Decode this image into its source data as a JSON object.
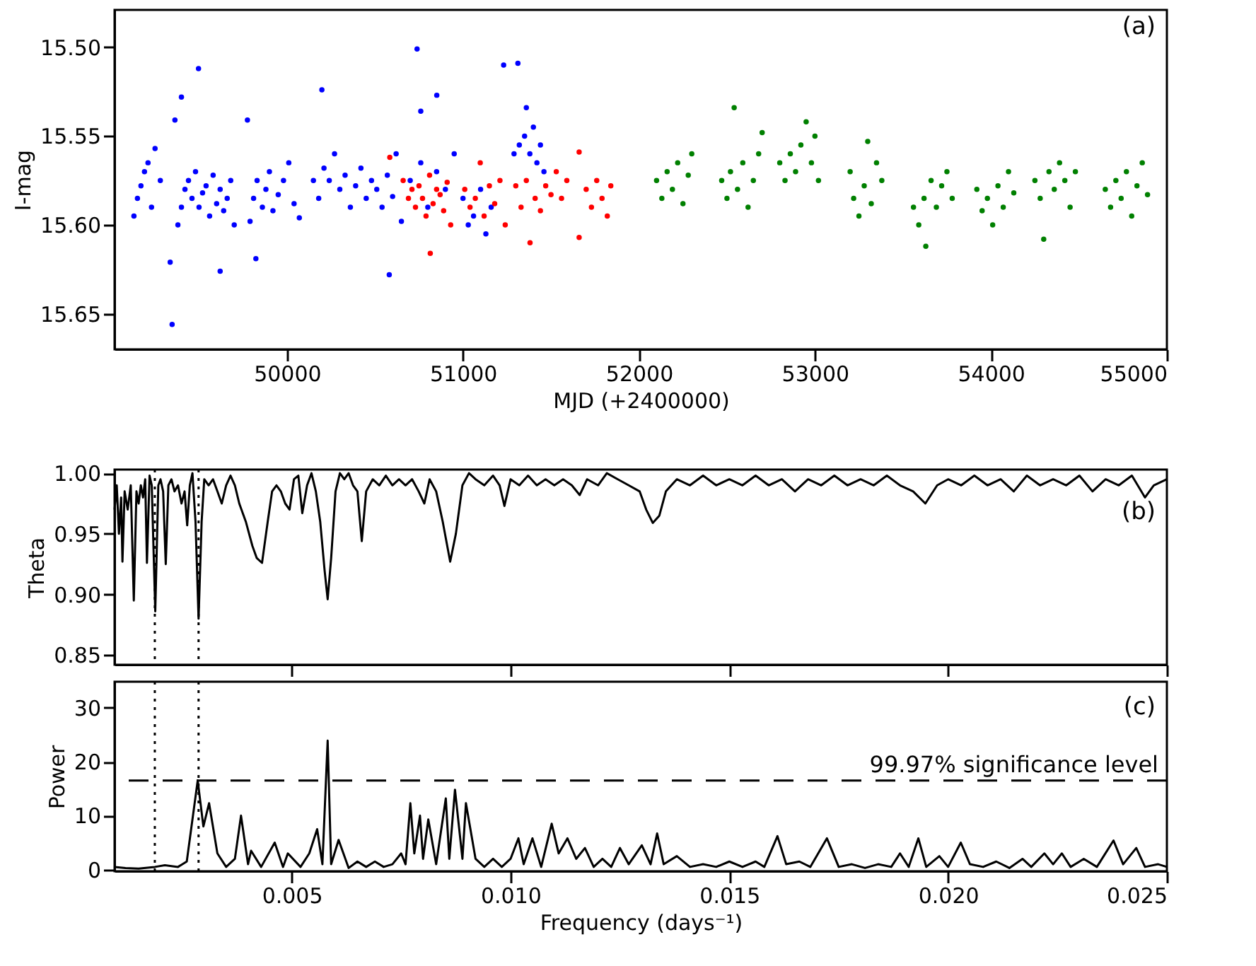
{
  "chart_data": [
    {
      "type": "scatter",
      "xlabel": "MJD (+2400000)",
      "ylabel": "I-mag",
      "annotations": [
        "(a)"
      ],
      "marker": "circle",
      "xlim": [
        49020,
        55000
      ],
      "xticks": [
        50000,
        51000,
        52000,
        53000,
        54000,
        55000
      ],
      "ylim": [
        15.67,
        15.479
      ],
      "yticks": [
        {
          "value": 15.5,
          "label": "15.50"
        },
        15.55,
        {
          "value": 15.6,
          "label": "15.60"
        },
        15.65
      ],
      "series": [
        {
          "color": "#0000ff",
          "x": [
            49130,
            49150,
            49170,
            49190,
            49210,
            49230,
            49250,
            49280,
            49380,
            49400,
            49420,
            49440,
            49460,
            49480,
            49500,
            49520,
            49540,
            49560,
            49580,
            49600,
            49620,
            49640,
            49660,
            49680,
            49700,
            49790,
            49810,
            49830,
            49860,
            49880,
            49900,
            49920,
            49950,
            49980,
            50010,
            50040,
            50070,
            50150,
            50180,
            50210,
            50240,
            50270,
            50300,
            50330,
            50360,
            50390,
            50420,
            50450,
            50480,
            50510,
            50540,
            50570,
            50600,
            50620,
            50650,
            50700,
            50760,
            50800,
            50850,
            50900,
            50950,
            51000,
            51030,
            51060,
            51100,
            51130,
            51160,
            51290,
            51320,
            51350,
            51380,
            51400,
            51420,
            51440,
            51460,
            49497,
            49400,
            49363,
            49347,
            49620,
            50198,
            49775,
            50739,
            50851,
            50760,
            50581,
            51231,
            51312,
            51360,
            49336,
            49823
          ],
          "values": [
            15.595,
            15.585,
            15.578,
            15.57,
            15.565,
            15.59,
            15.557,
            15.575,
            15.6,
            15.59,
            15.58,
            15.575,
            15.585,
            15.57,
            15.59,
            15.582,
            15.578,
            15.595,
            15.572,
            15.588,
            15.58,
            15.592,
            15.585,
            15.575,
            15.6,
            15.598,
            15.585,
            15.575,
            15.59,
            15.58,
            15.57,
            15.592,
            15.583,
            15.575,
            15.565,
            15.588,
            15.596,
            15.575,
            15.585,
            15.568,
            15.575,
            15.56,
            15.58,
            15.572,
            15.59,
            15.578,
            15.568,
            15.585,
            15.575,
            15.58,
            15.59,
            15.572,
            15.584,
            15.56,
            15.598,
            15.575,
            15.565,
            15.59,
            15.57,
            15.58,
            15.56,
            15.585,
            15.6,
            15.595,
            15.58,
            15.605,
            15.59,
            15.56,
            15.555,
            15.55,
            15.56,
            15.545,
            15.565,
            15.555,
            15.57,
            15.512,
            15.528,
            15.541,
            15.656,
            15.626,
            15.524,
            15.541,
            15.501,
            15.527,
            15.536,
            15.628,
            15.51,
            15.509,
            15.534,
            15.621,
            15.619
          ]
        },
        {
          "color": "#ff0000",
          "x": [
            50660,
            50690,
            50710,
            50730,
            50750,
            50770,
            50790,
            50810,
            50830,
            50850,
            50870,
            50890,
            50910,
            50930,
            50814,
            50584,
            51010,
            51040,
            51070,
            51098,
            51120,
            51150,
            51180,
            51210,
            51240,
            51300,
            51330,
            51360,
            51381,
            51410,
            51440,
            51470,
            51500,
            51530,
            51560,
            51590,
            51660,
            51660,
            51700,
            51730,
            51760,
            51790,
            51820,
            51840
          ],
          "values": [
            15.575,
            15.585,
            15.58,
            15.59,
            15.578,
            15.585,
            15.595,
            15.572,
            15.588,
            15.58,
            15.583,
            15.592,
            15.576,
            15.6,
            15.616,
            15.562,
            15.58,
            15.59,
            15.585,
            15.565,
            15.595,
            15.578,
            15.588,
            15.575,
            15.6,
            15.578,
            15.59,
            15.575,
            15.61,
            15.585,
            15.592,
            15.578,
            15.583,
            15.57,
            15.585,
            15.575,
            15.559,
            15.607,
            15.58,
            15.59,
            15.575,
            15.585,
            15.595,
            15.578
          ]
        },
        {
          "color": "#008000",
          "x": [
            52100,
            52130,
            52160,
            52190,
            52220,
            52250,
            52280,
            52300,
            52470,
            52500,
            52520,
            52541,
            52560,
            52590,
            52620,
            52650,
            52680,
            52700,
            52800,
            52830,
            52860,
            52890,
            52920,
            52950,
            52980,
            53000,
            53020,
            53200,
            53220,
            53250,
            53280,
            53300,
            53320,
            53350,
            53380,
            53560,
            53590,
            53620,
            53630,
            53660,
            53690,
            53720,
            53750,
            53780,
            53920,
            53950,
            53980,
            54010,
            54040,
            54070,
            54100,
            54130,
            54250,
            54280,
            54300,
            54330,
            54360,
            54390,
            54420,
            54450,
            54480,
            54650,
            54680,
            54710,
            54740,
            54770,
            54800,
            54830,
            54860,
            54890
          ],
          "values": [
            15.575,
            15.585,
            15.57,
            15.58,
            15.565,
            15.588,
            15.572,
            15.56,
            15.575,
            15.585,
            15.57,
            15.534,
            15.58,
            15.565,
            15.59,
            15.575,
            15.56,
            15.548,
            15.565,
            15.575,
            15.56,
            15.57,
            15.555,
            15.542,
            15.565,
            15.55,
            15.575,
            15.57,
            15.585,
            15.595,
            15.578,
            15.553,
            15.588,
            15.565,
            15.575,
            15.59,
            15.6,
            15.585,
            15.612,
            15.575,
            15.59,
            15.578,
            15.57,
            15.585,
            15.58,
            15.592,
            15.585,
            15.6,
            15.578,
            15.59,
            15.57,
            15.582,
            15.575,
            15.585,
            15.608,
            15.57,
            15.58,
            15.565,
            15.575,
            15.59,
            15.57,
            15.58,
            15.59,
            15.575,
            15.585,
            15.57,
            15.595,
            15.578,
            15.565,
            15.583
          ]
        }
      ]
    },
    {
      "type": "line",
      "ylabel": "Theta",
      "annotations": [
        "(b)"
      ],
      "tick_labels": "y",
      "xlim": [
        0.00095,
        0.025
      ],
      "xticks": [
        0.005,
        0.01,
        0.015,
        0.02,
        0.025
      ],
      "ylim": [
        0.842,
        1.003
      ],
      "yticks": [
        0.85,
        {
          "value": 0.9,
          "label": "0.90"
        },
        0.95,
        {
          "value": 1,
          "label": "1.00"
        }
      ],
      "ref_lines": [
        {
          "axis": "x",
          "value": 0.00187,
          "line_style": "dotted"
        },
        {
          "axis": "x",
          "value": 0.00287,
          "line_style": "dotted"
        }
      ],
      "series": [
        {
          "color": "#000000",
          "x": [
            0.00095,
            0.001,
            0.00105,
            0.0011,
            0.00113,
            0.00118,
            0.00125,
            0.00132,
            0.00139,
            0.00145,
            0.0015,
            0.00155,
            0.0016,
            0.00165,
            0.00169,
            0.00175,
            0.0018,
            0.00188,
            0.00195,
            0.002,
            0.00206,
            0.00212,
            0.00218,
            0.00225,
            0.00232,
            0.0024,
            0.00248,
            0.00255,
            0.00261,
            0.00267,
            0.00273,
            0.0028,
            0.00287,
            0.00294,
            0.003,
            0.0031,
            0.0032,
            0.0033,
            0.0034,
            0.0035,
            0.0036,
            0.0037,
            0.0038,
            0.00395,
            0.0041,
            0.0042,
            0.00432,
            0.00445,
            0.00455,
            0.00465,
            0.00475,
            0.00485,
            0.00495,
            0.00505,
            0.00515,
            0.00524,
            0.00535,
            0.00545,
            0.00555,
            0.00565,
            0.00575,
            0.00582,
            0.0059,
            0.006,
            0.0061,
            0.0062,
            0.0063,
            0.0064,
            0.0065,
            0.0066,
            0.0067,
            0.00685,
            0.007,
            0.00715,
            0.0073,
            0.00745,
            0.0076,
            0.00775,
            0.0079,
            0.00803,
            0.00815,
            0.0083,
            0.00845,
            0.00862,
            0.00875,
            0.0089,
            0.00905,
            0.0092,
            0.0094,
            0.0096,
            0.00975,
            0.00986,
            0.01,
            0.0102,
            0.0104,
            0.0106,
            0.0108,
            0.011,
            0.0112,
            0.0114,
            0.01158,
            0.01175,
            0.012,
            0.0122,
            0.01245,
            0.0127,
            0.01295,
            0.0131,
            0.01325,
            0.0134,
            0.01355,
            0.0138,
            0.0141,
            0.0144,
            0.0147,
            0.015,
            0.0153,
            0.0156,
            0.0159,
            0.0162,
            0.0165,
            0.0168,
            0.0171,
            0.0174,
            0.0177,
            0.018,
            0.0183,
            0.0186,
            0.0189,
            0.0192,
            0.01948,
            0.01975,
            0.02,
            0.0203,
            0.0206,
            0.0209,
            0.0212,
            0.0215,
            0.0218,
            0.0221,
            0.0224,
            0.0227,
            0.023,
            0.0233,
            0.0236,
            0.0239,
            0.0242,
            0.0245,
            0.0247,
            0.025
          ],
          "values": [
            0.97,
            0.99,
            0.95,
            0.98,
            0.927,
            0.985,
            0.97,
            0.99,
            0.895,
            0.985,
            0.975,
            0.99,
            0.98,
            0.995,
            0.926,
            0.998,
            0.99,
            0.886,
            0.99,
            0.995,
            0.985,
            0.925,
            0.99,
            0.995,
            0.985,
            0.99,
            0.975,
            0.985,
            0.957,
            0.99,
            1.0,
            0.96,
            0.88,
            0.96,
            0.995,
            0.99,
            0.995,
            0.985,
            0.975,
            0.99,
            0.998,
            0.99,
            0.975,
            0.96,
            0.94,
            0.93,
            0.926,
            0.96,
            0.985,
            0.99,
            0.985,
            0.975,
            0.97,
            0.995,
            0.998,
            0.967,
            0.99,
            1.0,
            0.985,
            0.96,
            0.92,
            0.896,
            0.93,
            0.985,
            1.0,
            0.995,
            1.0,
            0.99,
            0.985,
            0.944,
            0.985,
            0.995,
            0.99,
            0.998,
            0.99,
            0.995,
            0.99,
            0.995,
            0.985,
            0.975,
            0.995,
            0.985,
            0.96,
            0.927,
            0.95,
            0.99,
            1.0,
            0.995,
            0.99,
            0.998,
            0.99,
            0.973,
            0.995,
            0.99,
            0.998,
            0.99,
            0.995,
            0.99,
            0.995,
            0.99,
            0.982,
            0.995,
            0.99,
            1.0,
            0.995,
            0.99,
            0.985,
            0.97,
            0.959,
            0.965,
            0.985,
            0.995,
            0.99,
            0.998,
            0.99,
            0.995,
            0.99,
            0.998,
            0.99,
            0.995,
            0.985,
            0.995,
            0.99,
            0.998,
            0.99,
            0.995,
            0.99,
            0.998,
            0.99,
            0.985,
            0.975,
            0.99,
            0.995,
            0.99,
            0.998,
            0.99,
            0.995,
            0.985,
            0.998,
            0.99,
            0.995,
            0.99,
            0.998,
            0.985,
            0.995,
            0.99,
            0.998,
            0.98,
            0.99,
            0.995
          ]
        }
      ]
    },
    {
      "type": "line",
      "xlabel": "Frequency (days⁻¹)",
      "ylabel": "Power",
      "annotations": [
        "(c)"
      ],
      "xlim": [
        0.00095,
        0.025
      ],
      "xticks": [
        0.005,
        {
          "value": 0.01,
          "label": "0.010"
        },
        0.015,
        {
          "value": 0.02,
          "label": "0.020"
        },
        0.025
      ],
      "ylim": [
        -0.3,
        34.8
      ],
      "yticks": [
        0,
        10,
        20,
        30
      ],
      "ref_lines": [
        {
          "axis": "x",
          "value": 0.00187,
          "line_style": "dotted"
        },
        {
          "axis": "x",
          "value": 0.00287,
          "line_style": "dotted"
        },
        {
          "axis": "y",
          "value": 16.5,
          "label": "99.97% significance level",
          "line_style": "dashed"
        }
      ],
      "series": [
        {
          "color": "#000000",
          "x": [
            0.00095,
            0.0012,
            0.0015,
            0.00187,
            0.0021,
            0.0024,
            0.0026,
            0.00285,
            0.00298,
            0.00311,
            0.0033,
            0.0035,
            0.0037,
            0.00384,
            0.004,
            0.00407,
            0.0043,
            0.00461,
            0.0048,
            0.00491,
            0.0052,
            0.0054,
            0.00558,
            0.0057,
            0.00582,
            0.0059,
            0.00607,
            0.0063,
            0.0065,
            0.0067,
            0.0069,
            0.0071,
            0.0073,
            0.0075,
            0.0076,
            0.00771,
            0.0078,
            0.00793,
            0.008,
            0.00812,
            0.0083,
            0.00852,
            0.0086,
            0.00873,
            0.0089,
            0.00898,
            0.0092,
            0.0094,
            0.0096,
            0.0098,
            0.01,
            0.01018,
            0.0103,
            0.0105,
            0.0107,
            0.01094,
            0.0111,
            0.0113,
            0.0115,
            0.0117,
            0.0119,
            0.0121,
            0.0123,
            0.0125,
            0.0127,
            0.013,
            0.0132,
            0.01335,
            0.0135,
            0.0138,
            0.0141,
            0.0144,
            0.0147,
            0.015,
            0.0153,
            0.0156,
            0.0158,
            0.0161,
            0.0163,
            0.0166,
            0.01685,
            0.01723,
            0.0175,
            0.0178,
            0.0181,
            0.0184,
            0.0187,
            0.0189,
            0.0191,
            0.01932,
            0.0195,
            0.0198,
            0.02,
            0.02029,
            0.0205,
            0.0208,
            0.0211,
            0.0214,
            0.0217,
            0.0219,
            0.0222,
            0.0224,
            0.0226,
            0.0228,
            0.0231,
            0.0234,
            0.02378,
            0.024,
            0.0243,
            0.0245,
            0.0248,
            0.025
          ],
          "values": [
            0.5,
            0.3,
            0.2,
            0.5,
            0.8,
            0.5,
            1.5,
            16.5,
            8,
            12.3,
            3,
            0.5,
            2,
            10,
            1,
            3.5,
            0.5,
            5,
            0.5,
            3,
            0.5,
            3,
            7.5,
            1,
            23.9,
            1,
            5.5,
            0.3,
            1.5,
            0.5,
            1.5,
            0.5,
            1,
            3,
            1,
            12.3,
            3,
            10,
            2,
            9.3,
            1,
            13.2,
            2,
            14.8,
            2,
            12.3,
            2,
            0.5,
            2,
            0.5,
            2,
            5.8,
            1,
            5.8,
            0.5,
            8.5,
            3,
            5.8,
            2,
            4,
            0.5,
            2,
            0.5,
            4,
            1,
            4.5,
            1,
            6.7,
            1,
            2.5,
            0.5,
            1,
            0.5,
            1.5,
            0.5,
            1.5,
            0.5,
            6.2,
            1,
            1.5,
            0.5,
            5.8,
            0.5,
            1,
            0.3,
            1,
            0.5,
            3,
            0.5,
            5.8,
            0.5,
            2.5,
            0.5,
            5,
            1,
            0.5,
            1.5,
            0.3,
            2,
            0.5,
            3,
            1,
            3,
            0.5,
            2,
            0.5,
            5.4,
            1,
            4,
            0.5,
            1,
            0.5
          ]
        }
      ]
    }
  ]
}
